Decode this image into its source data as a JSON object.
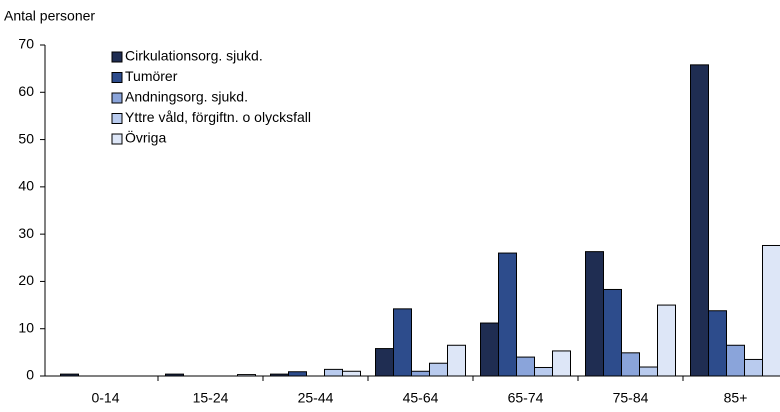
{
  "chart_data": {
    "type": "bar",
    "y_label": "Antal personer",
    "categories": [
      "0-14",
      "15-24",
      "25-44",
      "45-64",
      "65-74",
      "75-84",
      "85+"
    ],
    "series": [
      {
        "name": "Cirkulationsorg. sjukd.",
        "color": "#1f2d52",
        "values": [
          0.4,
          0.4,
          0.4,
          5.8,
          11.2,
          26.3,
          65.8
        ]
      },
      {
        "name": "Tumörer",
        "color": "#2d4c8c",
        "values": [
          0,
          0,
          0.9,
          14.2,
          26,
          18.3,
          13.8
        ]
      },
      {
        "name": "Andningsorg. sjukd.",
        "color": "#8aa4da",
        "values": [
          0,
          0,
          0,
          1,
          4,
          4.9,
          6.5
        ]
      },
      {
        "name": "Yttre våld, förgiftn. o olycksfall",
        "color": "#b9cbee",
        "values": [
          0,
          0,
          1.4,
          2.7,
          1.8,
          1.9,
          3.5
        ]
      },
      {
        "name": "Övriga",
        "color": "#dde6f7",
        "values": [
          0,
          0.3,
          1,
          6.5,
          5.3,
          15,
          27.6
        ]
      }
    ],
    "ylim": [
      0,
      70
    ],
    "yticks": [
      0,
      10,
      20,
      30,
      40,
      50,
      60,
      70
    ],
    "grid": false,
    "legend": "top-left"
  }
}
